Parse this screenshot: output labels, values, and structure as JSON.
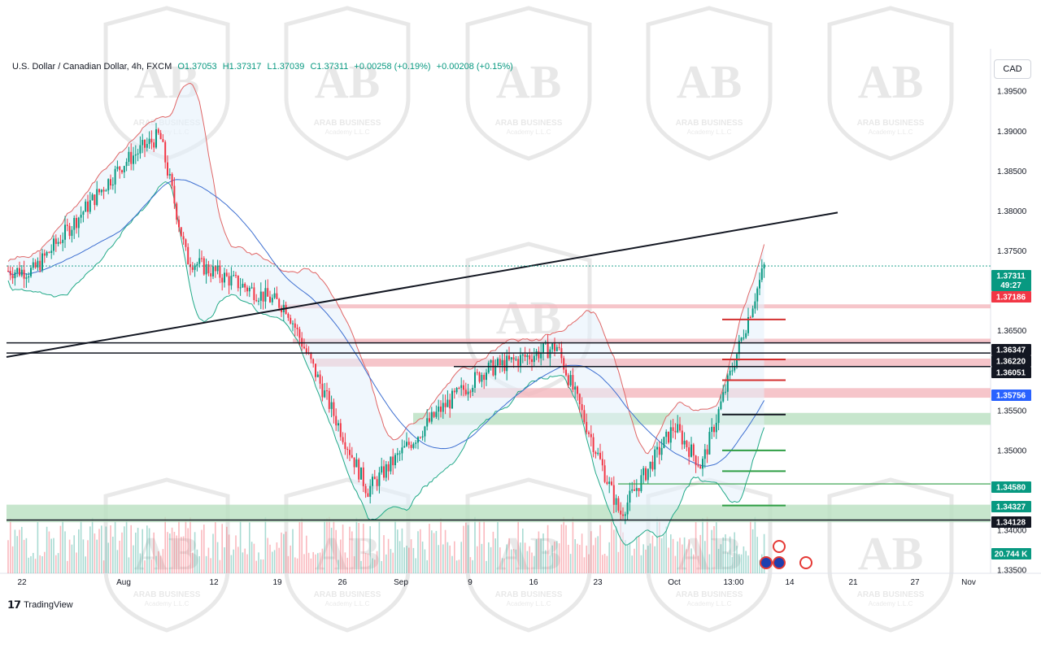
{
  "legend": {
    "symbol": "U.S. Dollar / Canadian Dollar, 4h, FXCM",
    "open": "O1.37053",
    "high": "H1.37317",
    "low": "L1.37039",
    "close": "C1.37311",
    "change": "+0.00258 (+0.19%)",
    "change2": "+0.00208 (+0.15%)"
  },
  "currency_button": "CAD",
  "brand": "TradingView",
  "watermark": {
    "text": "ARAB BUSINESS",
    "subtext": "Academy L.L.C"
  },
  "colors": {
    "up": "#089981",
    "down": "#f23645",
    "bb_upper": "#e06666",
    "bb_lower": "#22aa88",
    "ma": "#3d6fd1",
    "zone_red": "#f4b6bd",
    "zone_green": "#b9e0c0"
  },
  "chart_data": {
    "type": "candlestick",
    "timeframe": "4h",
    "ylim": [
      1.3346,
      1.3993
    ],
    "y_ticks": [
      "1.39500",
      "1.39000",
      "1.38500",
      "1.38000",
      "1.37500",
      "1.36500",
      "1.35500",
      "1.35000",
      "1.34000",
      "1.33500"
    ],
    "x_ticks": [
      "22",
      "Aug",
      "12",
      "19",
      "26",
      "Sep",
      "9",
      "16",
      "23",
      "Oct",
      "13:00",
      "14",
      "21",
      "27",
      "Nov"
    ],
    "price_labels": [
      {
        "value": "1.37311",
        "extra": "49:27",
        "color": "#089981"
      },
      {
        "value": "1.37186",
        "color": "#f23645"
      },
      {
        "value": "1.36347",
        "color": "#131722"
      },
      {
        "value": "1.36220",
        "color": "#131722"
      },
      {
        "value": "1.36051",
        "color": "#131722"
      },
      {
        "value": "1.35756",
        "color": "#2962ff"
      },
      {
        "value": "1.34580",
        "color": "#089981"
      },
      {
        "value": "1.34327",
        "color": "#089981"
      },
      {
        "value": "1.34128",
        "color": "#131722"
      },
      {
        "value": "20.744 K",
        "color": "#089981"
      }
    ],
    "horizontal_lines": [
      1.36347,
      1.3622,
      1.36051,
      1.34128
    ],
    "trendline": {
      "from": [
        0,
        1.3617
      ],
      "to": [
        1.0,
        1.3798
      ]
    },
    "zones": [
      {
        "type": "resistance",
        "low": 1.3678,
        "high": 1.3683
      },
      {
        "type": "resistance",
        "low": 1.3634,
        "high": 1.364
      },
      {
        "type": "resistance",
        "low": 1.3605,
        "high": 1.3615
      },
      {
        "type": "resistance",
        "low": 1.3566,
        "high": 1.3578
      },
      {
        "type": "support",
        "low": 1.3532,
        "high": 1.3547
      },
      {
        "type": "support",
        "low": 1.341,
        "high": 1.3432
      }
    ],
    "key_points": [
      {
        "date": "Jul 22",
        "close": 1.3725
      },
      {
        "date": "Aug 1",
        "close": 1.386
      },
      {
        "date": "Aug 5",
        "close": 1.3895
      },
      {
        "date": "Aug 8",
        "close": 1.374
      },
      {
        "date": "Aug 19",
        "close": 1.368
      },
      {
        "date": "Aug 28",
        "close": 1.345
      },
      {
        "date": "Sep 5",
        "close": 1.355
      },
      {
        "date": "Sep 10",
        "close": 1.36
      },
      {
        "date": "Sep 18",
        "close": 1.363
      },
      {
        "date": "Sep 25",
        "close": 1.342
      },
      {
        "date": "Oct 1",
        "close": 1.353
      },
      {
        "date": "Oct 4",
        "close": 1.348
      },
      {
        "date": "Oct 11",
        "close": 1.3731
      }
    ]
  }
}
